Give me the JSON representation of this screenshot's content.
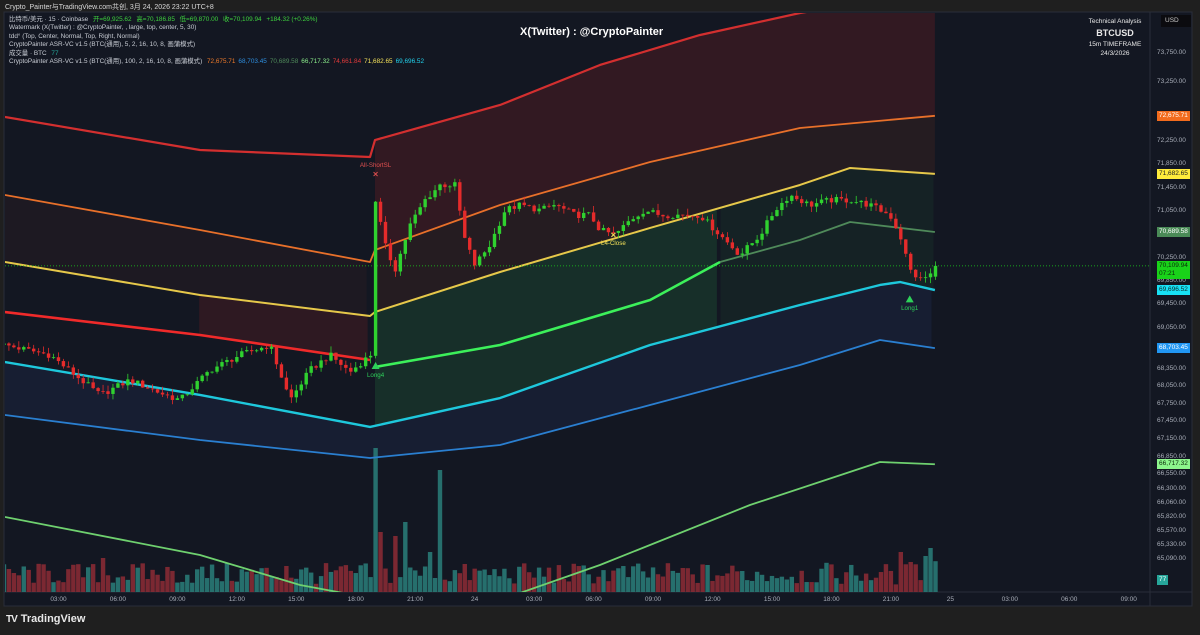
{
  "header": {
    "title": "Crypto_Painter与TradingView.com共创, 3月 24, 2026 23:22 UTC+8"
  },
  "legend": {
    "symbol_line": "比特币/美元 · 15 · Coinbase",
    "open": "开=69,925.62",
    "high": "高=70,186.85",
    "low": "低=69,870.00",
    "close": "收=70,109.94",
    "change": "+184.32 (+0.26%)",
    "watermark_line": "Watermark (X(Twitter) : @CryptoPainter, , large, top, center, 5, 30)",
    "table_line": "tdd° (Top, Center, Normal, Top, Right, Normal)",
    "indicator1": "CryptoPainter ASR-VC v1.5 (BTC(通用), 5, 2, 16, 10, 8, 画蒲模式)",
    "volume_label": "成交量 · BTC",
    "volume_value": "77",
    "indicator2": "CryptoPainter ASR-VC v1.5 (BTC(通用), 100, 2, 16, 10, 8, 画蒲模式)",
    "indicator2_values": [
      {
        "text": "72,675.71",
        "color": "#f07b2a"
      },
      {
        "text": "68,703.45",
        "color": "#2e8fe0"
      },
      {
        "text": "70,689.58",
        "color": "#4f8a5a"
      },
      {
        "text": "66,717.32",
        "color": "#8cf08c"
      },
      {
        "text": "74,661.84",
        "color": "#e03a3a"
      },
      {
        "text": "71,682.65",
        "color": "#f5e25a"
      },
      {
        "text": "69,696.52",
        "color": "#22d3ee"
      }
    ]
  },
  "watermark": "X(Twitter) : @CryptoPainter",
  "infobox": {
    "title": "Technical Analysis",
    "symbol": "BTCUSD",
    "timeframe": "15m TIMEFRAME",
    "date": "24/3/2026"
  },
  "price_axis": {
    "currency": "USD",
    "ticks": [
      "73,750.00",
      "73,250.00",
      "72,250.00",
      "71,850.00",
      "71,450.00",
      "71,050.00",
      "70,250.00",
      "69,850.00",
      "69,450.00",
      "69,050.00",
      "68,350.00",
      "68,050.00",
      "67,750.00",
      "67,450.00",
      "67,150.00",
      "66,850.00",
      "66,550.00",
      "66,300.00",
      "66,060.00",
      "65,820.00",
      "65,570.00",
      "65,330.00",
      "65,090.00"
    ],
    "tags": [
      {
        "text": "72,675.71",
        "price": 72675.71,
        "bg": "#f26b1d",
        "fg": "#ffffff"
      },
      {
        "text": "71,682.65",
        "price": 71682.65,
        "bg": "#ffeb3b",
        "fg": "#222222"
      },
      {
        "text": "70,689.58",
        "price": 70689.58,
        "bg": "#4a8a57",
        "fg": "#ffffff"
      },
      {
        "text": "70,109.94",
        "sub": "07:21",
        "price": 70109.94,
        "bg": "#19d219",
        "fg": "#0a2a0a"
      },
      {
        "text": "69,696.52",
        "price": 69696.52,
        "bg": "#18e1f5",
        "fg": "#0a2a2a"
      },
      {
        "text": "68,703.45",
        "price": 68703.45,
        "bg": "#2196f3",
        "fg": "#ffffff"
      },
      {
        "text": "66,717.32",
        "price": 66717.32,
        "bg": "#8cf58c",
        "fg": "#0a2a0a"
      },
      {
        "text": "77",
        "volume": true,
        "bg": "#26a69a",
        "fg": "#ffffff"
      }
    ]
  },
  "time_axis": {
    "labels": [
      {
        "text": "03:00",
        "h": 3
      },
      {
        "text": "06:00",
        "h": 6
      },
      {
        "text": "09:00",
        "h": 9
      },
      {
        "text": "12:00",
        "h": 12
      },
      {
        "text": "15:00",
        "h": 15
      },
      {
        "text": "18:00",
        "h": 18
      },
      {
        "text": "21:00",
        "h": 21
      },
      {
        "text": "24",
        "h": 24
      },
      {
        "text": "03:00",
        "h": 27
      },
      {
        "text": "06:00",
        "h": 30
      },
      {
        "text": "09:00",
        "h": 33
      },
      {
        "text": "12:00",
        "h": 36
      },
      {
        "text": "15:00",
        "h": 39
      },
      {
        "text": "18:00",
        "h": 42
      },
      {
        "text": "21:00",
        "h": 45
      },
      {
        "text": "25",
        "h": 48
      },
      {
        "text": "03:00",
        "h": 51
      },
      {
        "text": "06:00",
        "h": 54
      },
      {
        "text": "09:00",
        "h": 57
      }
    ]
  },
  "markers": [
    {
      "label": "All-ShortSL",
      "type": "cross",
      "h": 19.0,
      "price": 71680,
      "color": "#e05050",
      "label_pos": "above"
    },
    {
      "label": "Long4",
      "type": "triangle",
      "h": 19.0,
      "price": 68380,
      "color": "#2ed15a",
      "label_pos": "below"
    },
    {
      "label": "L4-Close",
      "type": "cross",
      "h": 31.0,
      "price": 70640,
      "color": "#f5e25a",
      "label_pos": "below"
    },
    {
      "label": "Long1",
      "type": "triangle",
      "h": 45.95,
      "price": 69520,
      "color": "#2ed15a",
      "label_pos": "below"
    }
  ],
  "footer": {
    "brand": "TradingView"
  },
  "chart_data": {
    "type": "candlestick",
    "title": "BTCUSD 15m",
    "x_unit": "hours since 2026-03-23 00:00 (UTC+8)",
    "bar_interval_hours": 0.25,
    "ylim": [
      64530,
      74430
    ],
    "last_bar": {
      "open": 69925.62,
      "high": 70186.85,
      "low": 69870.0,
      "close": 70109.94,
      "change": 184.32,
      "change_pct": 0.26,
      "volume": 77
    },
    "close_path": [
      [
        0.3,
        68757
      ],
      [
        2.57,
        68586
      ],
      [
        5.1,
        67902
      ],
      [
        6.61,
        68158
      ],
      [
        8.38,
        67902
      ],
      [
        9.13,
        67816
      ],
      [
        10.65,
        68329
      ],
      [
        12.16,
        68586
      ],
      [
        13.67,
        68757
      ],
      [
        14.68,
        67816
      ],
      [
        15.69,
        68329
      ],
      [
        16.7,
        68586
      ],
      [
        17.71,
        68295
      ],
      [
        18.75,
        68590
      ],
      [
        19.0,
        71236
      ],
      [
        19.47,
        70467
      ],
      [
        19.98,
        70039
      ],
      [
        20.74,
        70809
      ],
      [
        21.49,
        71236
      ],
      [
        22.25,
        71493
      ],
      [
        23.01,
        71493
      ],
      [
        23.51,
        70552
      ],
      [
        24.01,
        70125
      ],
      [
        24.77,
        70467
      ],
      [
        25.53,
        71065
      ],
      [
        26.29,
        71151
      ],
      [
        27.3,
        71065
      ],
      [
        28.05,
        71151
      ],
      [
        29.06,
        70980
      ],
      [
        29.82,
        70980
      ],
      [
        30.32,
        70723
      ],
      [
        31.08,
        70638
      ],
      [
        31.84,
        70894
      ],
      [
        32.59,
        71065
      ],
      [
        33.35,
        70980
      ],
      [
        34.36,
        70980
      ],
      [
        35.37,
        70980
      ],
      [
        36.38,
        70638
      ],
      [
        37.39,
        70296
      ],
      [
        38.4,
        70638
      ],
      [
        39.15,
        71065
      ],
      [
        39.91,
        71322
      ],
      [
        40.92,
        71151
      ],
      [
        41.93,
        71236
      ],
      [
        42.94,
        71236
      ],
      [
        43.94,
        71151
      ],
      [
        44.95,
        70980
      ],
      [
        45.46,
        70638
      ],
      [
        45.96,
        70039
      ],
      [
        46.47,
        69868
      ],
      [
        46.97,
        69950
      ],
      [
        47.25,
        70109.94
      ]
    ],
    "volume_spikes_btc": [
      [
        19.0,
        360
      ],
      [
        19.25,
        150
      ],
      [
        20.0,
        140
      ],
      [
        20.5,
        175
      ],
      [
        21.75,
        100
      ],
      [
        22.25,
        305
      ],
      [
        23.5,
        70
      ],
      [
        5.25,
        85
      ],
      [
        14.5,
        65
      ],
      [
        45.5,
        100
      ],
      [
        46.0,
        75
      ],
      [
        46.75,
        90
      ],
      [
        47.0,
        110
      ],
      [
        47.25,
        77
      ]
    ],
    "series": [
      {
        "name": "band-red-top",
        "color": "#d32f2f",
        "width": 2.2,
        "points": [
          [
            0.3,
            72656
          ],
          [
            10.14,
            72091
          ],
          [
            18.72,
            71972
          ],
          [
            18.97,
            72262
          ],
          [
            25.28,
            72861
          ],
          [
            30.32,
            73545
          ],
          [
            35.37,
            74058
          ],
          [
            40.41,
            74434
          ],
          [
            42.94,
            74571
          ],
          [
            47.22,
            74662
          ]
        ]
      },
      {
        "name": "band-red-lower",
        "color": "#f02a2a",
        "width": 2.6,
        "points": [
          [
            0.3,
            69321
          ],
          [
            10.14,
            68928
          ],
          [
            18.72,
            68500
          ]
        ]
      },
      {
        "name": "band-orange",
        "color": "#e8702a",
        "width": 1.8,
        "points": [
          [
            0.3,
            71322
          ],
          [
            10.14,
            70723
          ],
          [
            18.72,
            70176
          ],
          [
            18.97,
            70381
          ],
          [
            25.28,
            71151
          ],
          [
            32.85,
            71886
          ],
          [
            40.41,
            72468
          ],
          [
            47.22,
            72675.71
          ]
        ]
      },
      {
        "name": "band-yellow",
        "color": "#e6c84a",
        "width": 2,
        "points": [
          [
            0.3,
            70176
          ],
          [
            10.14,
            69612
          ],
          [
            18.72,
            69253
          ],
          [
            18.97,
            69321
          ],
          [
            25.28,
            70005
          ],
          [
            32.85,
            70758
          ],
          [
            40.41,
            71493
          ],
          [
            42.94,
            71784
          ],
          [
            47.22,
            71682.65
          ]
        ]
      },
      {
        "name": "band-green-strong",
        "color": "#3cf05a",
        "width": 2.6,
        "points": [
          [
            18.97,
            68381
          ],
          [
            25.28,
            68757
          ],
          [
            32.85,
            69526
          ],
          [
            36.38,
            70176
          ]
        ]
      },
      {
        "name": "band-green-mid",
        "color": "#4f8a5a",
        "width": 1.8,
        "points": [
          [
            36.38,
            70176
          ],
          [
            40.41,
            70552
          ],
          [
            42.94,
            70860
          ],
          [
            47.22,
            70689.58
          ]
        ]
      },
      {
        "name": "band-cyan",
        "color": "#1ec8dc",
        "width": 2.4,
        "points": [
          [
            0.3,
            68466
          ],
          [
            10.14,
            67902
          ],
          [
            18.72,
            67355
          ],
          [
            25.28,
            67850
          ],
          [
            32.85,
            68757
          ],
          [
            40.41,
            69441
          ],
          [
            44.45,
            69783
          ],
          [
            45.46,
            69834
          ],
          [
            47.22,
            69696.52
          ]
        ]
      },
      {
        "name": "band-blue",
        "color": "#2a7fd0",
        "width": 1.8,
        "points": [
          [
            0.3,
            67560
          ],
          [
            10.14,
            67132
          ],
          [
            18.72,
            66825
          ],
          [
            25.28,
            67047
          ],
          [
            32.85,
            67731
          ],
          [
            40.41,
            68415
          ],
          [
            44.45,
            68842
          ],
          [
            47.22,
            68703.45
          ]
        ]
      },
      {
        "name": "band-lightgreen",
        "color": "#6fd16f",
        "width": 1.8,
        "points": [
          [
            0.3,
            65816
          ],
          [
            10.14,
            65166
          ],
          [
            15.19,
            64653
          ],
          [
            18.72,
            64430
          ],
          [
            25.28,
            64396
          ],
          [
            30.32,
            64995
          ],
          [
            37.89,
            66021
          ],
          [
            44.45,
            66756
          ],
          [
            47.22,
            66717.32
          ]
        ]
      }
    ],
    "colors": {
      "up": "#2fd12f",
      "down": "#e52b2b",
      "vol_up": "#2a7f7a",
      "vol_down": "#8e2c35",
      "pane_bg": "#131722"
    }
  }
}
